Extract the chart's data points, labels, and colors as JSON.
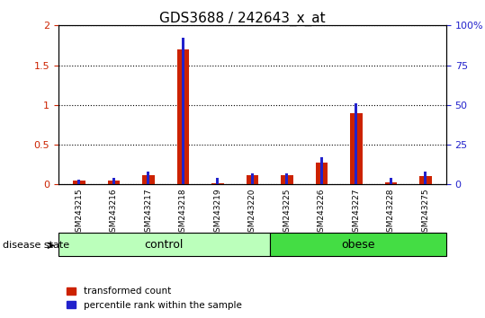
{
  "title": "GDS3688 / 242643_x_at",
  "samples": [
    "GSM243215",
    "GSM243216",
    "GSM243217",
    "GSM243218",
    "GSM243219",
    "GSM243220",
    "GSM243225",
    "GSM243226",
    "GSM243227",
    "GSM243228",
    "GSM243275"
  ],
  "transformed_count": [
    0.05,
    0.05,
    0.12,
    1.7,
    0.02,
    0.12,
    0.12,
    0.27,
    0.9,
    0.03,
    0.1
  ],
  "percentile_rank": [
    3,
    4,
    8,
    92,
    4,
    7,
    7,
    17,
    51,
    4,
    8
  ],
  "groups": [
    {
      "label": "control",
      "start": 0,
      "end": 6,
      "color": "#bbffbb"
    },
    {
      "label": "obese",
      "start": 6,
      "end": 11,
      "color": "#44dd44"
    }
  ],
  "ylim_left": [
    0,
    2
  ],
  "ylim_right": [
    0,
    100
  ],
  "yticks_left": [
    0,
    0.5,
    1.0,
    1.5,
    2.0
  ],
  "yticks_right": [
    0,
    25,
    50,
    75,
    100
  ],
  "ytick_labels_left": [
    "0",
    "0.5",
    "1",
    "1.5",
    "2"
  ],
  "ytick_labels_right": [
    "0",
    "25",
    "50",
    "75",
    "100%"
  ],
  "bar_color_red": "#cc2200",
  "bar_color_blue": "#2222cc",
  "bar_width": 0.35,
  "legend_red_label": "transformed count",
  "legend_blue_label": "percentile rank within the sample",
  "disease_state_label": "disease state",
  "bg_color": "#ffffff",
  "tick_label_area_color": "#cccccc"
}
